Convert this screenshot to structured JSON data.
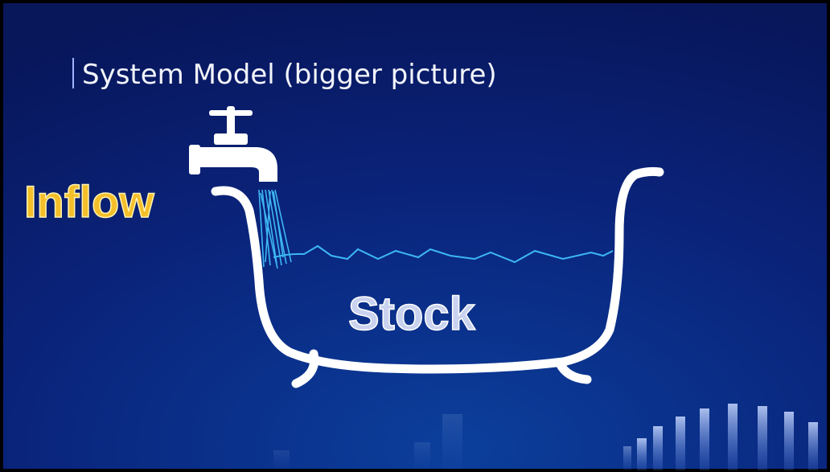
{
  "slide": {
    "title": "System Model (bigger picture)",
    "labels": {
      "inflow": "Inflow",
      "stock": "Stock"
    }
  }
}
